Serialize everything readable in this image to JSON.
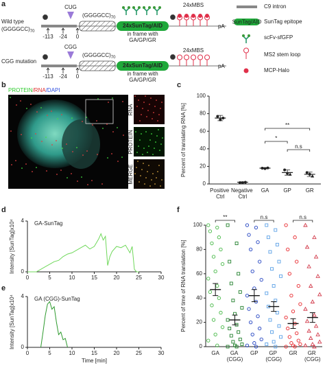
{
  "panels": {
    "a": "a",
    "b": "b",
    "c": "c",
    "d": "d",
    "e": "e",
    "f": "f"
  },
  "diagram": {
    "wt": {
      "label": "Wild type",
      "repeat": "(GGGGCC)",
      "count": "70",
      "codon": "CUG"
    },
    "mut": {
      "label": "CGG mutation",
      "codon": "CGG"
    },
    "repeat": "(GGGGCC)",
    "repeat_count": "70",
    "positions": [
      "-113",
      "-24",
      "0"
    ],
    "suntag": "24xSunTag/AID",
    "frame1": "in frame with",
    "frame2": "GA/GP/GR",
    "mbs": "24xMBS",
    "pa": "pA",
    "legend": {
      "intron": "C9 intron",
      "box": "SunTag/AID",
      "epitope": "SunTag epitope",
      "scfv": "scFv-sfGFP",
      "ms2": "MS2 stem loop",
      "mcp": "MCP-Halo"
    }
  },
  "image": {
    "protein": "PROTEIN",
    "rna": "/RNA",
    "dapi": "/DAPI",
    "inset_rna": "RNA",
    "inset_protein": "PROTEIN",
    "inset_merge": "MERGE"
  },
  "chart_data": [
    {
      "type": "dot",
      "ylabel": "Percent of translating RNA [%]",
      "categories": [
        "Positive Ctrl",
        "Negative Ctrl",
        "GA",
        "GP",
        "GR"
      ],
      "values": [
        75,
        2,
        18,
        13,
        11
      ],
      "errors": [
        3,
        0.5,
        0.6,
        3,
        2.5
      ],
      "points": [
        [
          77,
          73,
          75
        ],
        [
          1.5,
          1.5,
          2
        ],
        [
          18,
          17.5,
          18.3
        ],
        [
          16,
          12,
          11
        ],
        [
          13,
          11,
          9
        ]
      ],
      "ylim": [
        0,
        100
      ],
      "yticks": [
        0,
        20,
        40,
        60,
        80,
        100
      ],
      "annotations": [
        "**",
        "*",
        "n.s"
      ]
    },
    {
      "type": "line",
      "ylabel": "Intensity [SunTag]x10⁴",
      "xlim": [
        0,
        30
      ],
      "xticks": [
        0,
        5,
        10,
        15,
        20,
        25,
        30
      ],
      "ylim": [
        0,
        4
      ],
      "yticks": [
        0,
        4
      ],
      "x": [
        0,
        2,
        3,
        4,
        5,
        6,
        7,
        8,
        9,
        10,
        11,
        12,
        13,
        14,
        15,
        16,
        16.5,
        17,
        17.5,
        18,
        18.5,
        19,
        20,
        21,
        22,
        23,
        23.5,
        24,
        24.5,
        25
      ],
      "series": [
        {
          "name": "GA-SunTag",
          "color": "#6fd85a",
          "values": [
            0,
            0,
            0.2,
            0.4,
            0.6,
            0.8,
            0.9,
            1.2,
            1.4,
            1.5,
            1.7,
            1.9,
            2.1,
            1.8,
            2.0,
            2.6,
            3.0,
            2.5,
            2.8,
            0.5,
            1.2,
            1.6,
            2.0,
            1.9,
            2.1,
            1.5,
            2.0,
            0.2,
            0,
            0
          ]
        }
      ]
    },
    {
      "type": "line",
      "xlabel": "Time [min]",
      "ylabel": "Intensity [SunTag]x10⁴",
      "xlim": [
        0,
        30
      ],
      "xticks": [
        0,
        5,
        10,
        15,
        20,
        25,
        30
      ],
      "ylim": [
        0,
        4
      ],
      "yticks": [
        0,
        4
      ],
      "x": [
        3,
        3.5,
        4,
        4.5,
        5,
        5.5,
        6,
        6.5,
        7,
        7.5,
        8,
        8.5,
        9
      ],
      "series": [
        {
          "name": "GA (CGG)-SunTag",
          "color": "#2e9a2e",
          "values": [
            0,
            1.2,
            2.5,
            3.4,
            3.6,
            3.0,
            3.2,
            2.0,
            1.0,
            1.2,
            0.6,
            0.7,
            0
          ]
        }
      ]
    },
    {
      "type": "strip",
      "ylabel": "Percent of time of RNA translation [%]",
      "categories": [
        "GA",
        "GA (CGG)",
        "GP",
        "GP (CGG)",
        "GR",
        "GR (CGG)"
      ],
      "colors": [
        "#45b845",
        "#1f7f2a",
        "#1f40c0",
        "#5aa0e6",
        "#e8262b",
        "#d23a4a"
      ],
      "markers": [
        "circle",
        "square",
        "circle",
        "square",
        "circle",
        "triangle"
      ],
      "values": [
        47,
        22,
        42,
        33,
        19,
        24
      ],
      "errors": [
        5,
        4,
        5,
        4,
        4,
        4
      ],
      "points": [
        [
          100,
          98,
          95,
          90,
          85,
          80,
          74,
          68,
          62,
          56,
          50,
          45,
          40,
          34,
          28,
          22,
          16,
          10,
          5,
          1
        ],
        [
          100,
          85,
          70,
          60,
          52,
          45,
          38,
          32,
          27,
          22,
          18,
          15,
          12,
          9,
          6,
          4,
          2,
          1,
          0,
          0
        ],
        [
          100,
          98,
          92,
          86,
          80,
          70,
          62,
          55,
          48,
          42,
          37,
          31,
          25,
          20,
          15,
          10,
          6,
          3,
          1,
          0
        ],
        [
          100,
          96,
          90,
          84,
          78,
          70,
          64,
          58,
          50,
          44,
          38,
          33,
          28,
          22,
          17,
          12,
          8,
          4,
          2,
          0
        ],
        [
          100,
          90,
          80,
          70,
          60,
          50,
          42,
          35,
          29,
          24,
          19,
          15,
          11,
          8,
          5,
          3,
          2,
          1,
          0,
          0
        ],
        [
          100,
          90,
          82,
          74,
          66,
          58,
          50,
          43,
          37,
          31,
          26,
          21,
          17,
          13,
          10,
          7,
          4,
          2,
          1,
          0
        ]
      ],
      "ylim": [
        0,
        100
      ],
      "yticks": [
        0,
        20,
        40,
        60,
        80,
        100
      ],
      "annotations": [
        "**",
        "n.s",
        "n.s"
      ]
    }
  ]
}
